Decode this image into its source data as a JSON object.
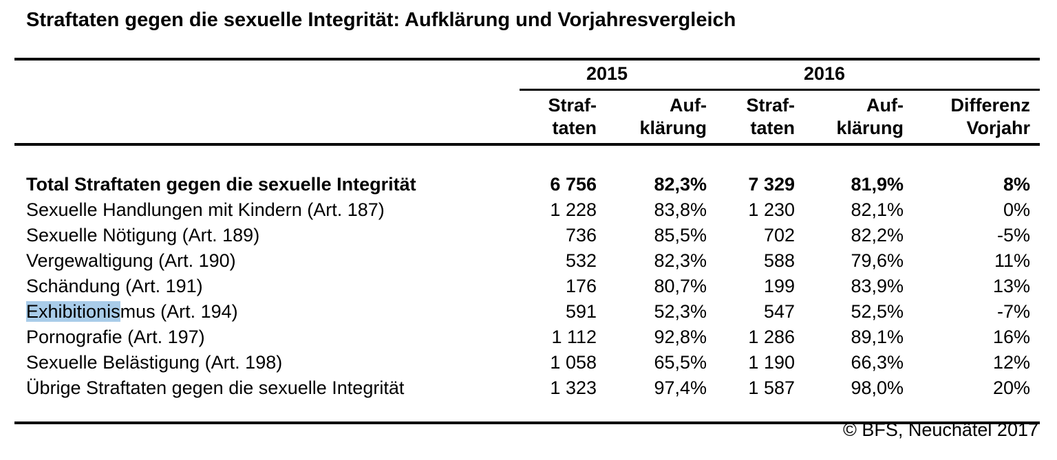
{
  "title": "Straftaten gegen die sexuelle Integrität: Aufklärung und Vorjahresvergleich",
  "colors": {
    "background": "#FFFFFF",
    "text": "#000000",
    "rule": "#000000",
    "selection_highlight": "#A9CCE9"
  },
  "table": {
    "year_headers": [
      "2015",
      "2016"
    ],
    "column_headers": [
      {
        "line1": "Straf-",
        "line2": "taten"
      },
      {
        "line1": "Auf-",
        "line2": "klärung"
      },
      {
        "line1": "Straf-",
        "line2": "taten"
      },
      {
        "line1": "Auf-",
        "line2": "klärung"
      },
      {
        "line1": "Differenz",
        "line2": "Vorjahr"
      }
    ],
    "rows": [
      {
        "label_hl": "",
        "label": "Total Straftaten gegen die sexuelle Integrität",
        "straftaten_2015": "6 756",
        "aufklaerung_2015": "82,3%",
        "straftaten_2016": "7 329",
        "aufklaerung_2016": "81,9%",
        "differenz_vorjahr": "8%"
      },
      {
        "label_hl": "",
        "label": "Sexuelle Handlungen mit Kindern (Art. 187)",
        "straftaten_2015": "1 228",
        "aufklaerung_2015": "83,8%",
        "straftaten_2016": "1 230",
        "aufklaerung_2016": "82,1%",
        "differenz_vorjahr": "0%"
      },
      {
        "label_hl": "",
        "label": "Sexuelle Nötigung (Art. 189)",
        "straftaten_2015": "736",
        "aufklaerung_2015": "85,5%",
        "straftaten_2016": "702",
        "aufklaerung_2016": "82,2%",
        "differenz_vorjahr": "-5%"
      },
      {
        "label_hl": "",
        "label": "Vergewaltigung (Art. 190)",
        "straftaten_2015": "532",
        "aufklaerung_2015": "82,3%",
        "straftaten_2016": "588",
        "aufklaerung_2016": "79,6%",
        "differenz_vorjahr": "11%"
      },
      {
        "label_hl": "",
        "label": "Schändung (Art. 191)",
        "straftaten_2015": "176",
        "aufklaerung_2015": "80,7%",
        "straftaten_2016": "199",
        "aufklaerung_2016": "83,9%",
        "differenz_vorjahr": "13%"
      },
      {
        "label_hl": "Exhibitionis",
        "label": "mus (Art. 194)",
        "straftaten_2015": "591",
        "aufklaerung_2015": "52,3%",
        "straftaten_2016": "547",
        "aufklaerung_2016": "52,5%",
        "differenz_vorjahr": "-7%"
      },
      {
        "label_hl": "",
        "label": "Pornografie (Art. 197)",
        "straftaten_2015": "1 112",
        "aufklaerung_2015": "92,8%",
        "straftaten_2016": "1 286",
        "aufklaerung_2016": "89,1%",
        "differenz_vorjahr": "16%"
      },
      {
        "label_hl": "",
        "label": "Sexuelle Belästigung (Art. 198)",
        "straftaten_2015": "1 058",
        "aufklaerung_2015": "65,5%",
        "straftaten_2016": "1 190",
        "aufklaerung_2016": "66,3%",
        "differenz_vorjahr": "12%"
      },
      {
        "label_hl": "",
        "label": "Übrige Straftaten gegen die sexuelle Integrität",
        "straftaten_2015": "1 323",
        "aufklaerung_2015": "97,4%",
        "straftaten_2016": "1 587",
        "aufklaerung_2016": "98,0%",
        "differenz_vorjahr": "20%"
      }
    ]
  },
  "footer": {
    "copyright": "© BFS, Neuchâtel 2017"
  }
}
